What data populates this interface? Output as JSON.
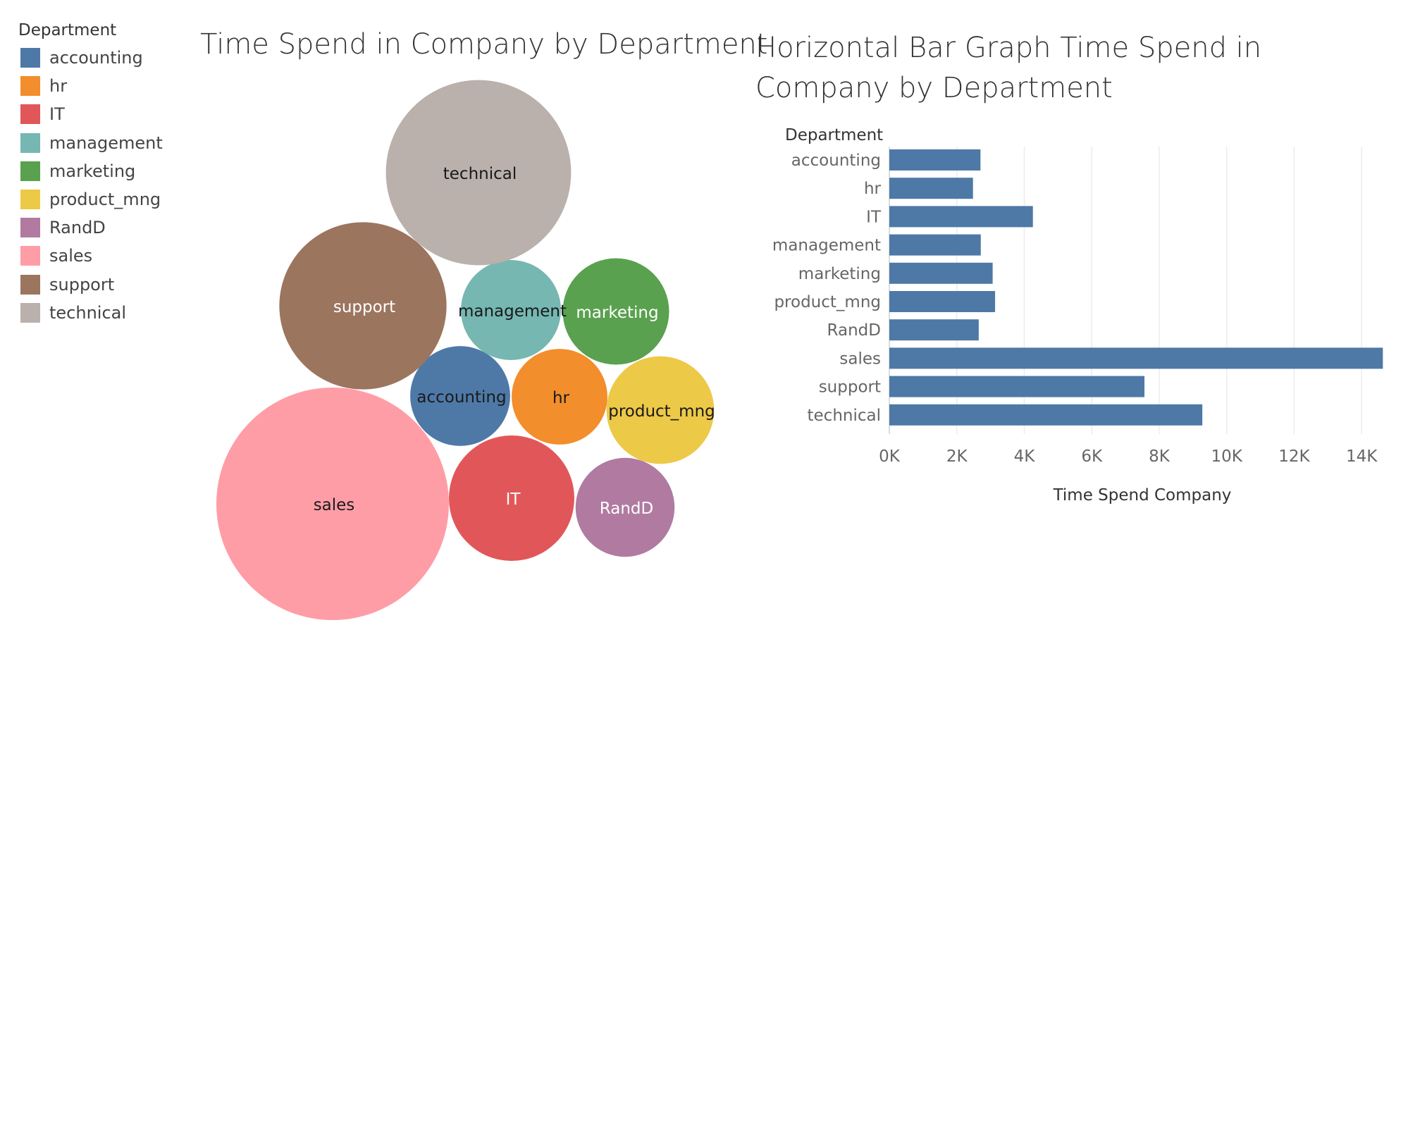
{
  "legend": {
    "title": "Department"
  },
  "titles": {
    "bubble": "Time Spend in Company by Department",
    "bar": "Horizontal Bar Graph Time Spend in Company by Department"
  },
  "chart_data": [
    {
      "type": "bubble",
      "title": "Time Spend in Company by Department",
      "categories": [
        "accounting",
        "hr",
        "IT",
        "management",
        "marketing",
        "product_mng",
        "RandD",
        "sales",
        "support",
        "technical"
      ],
      "values": [
        2702,
        2480,
        4256,
        2711,
        3063,
        3135,
        2650,
        14631,
        7563,
        9279
      ],
      "colors": {
        "accounting": "#4e79a7",
        "hr": "#f28e2b",
        "IT": "#e15759",
        "management": "#76b7b2",
        "marketing": "#59a14f",
        "product_mng": "#edc948",
        "RandD": "#b07aa1",
        "sales": "#ff9da7",
        "support": "#9c755f",
        "technical": "#bab0ac"
      },
      "label_colors": {
        "accounting": "#1a1a1a",
        "hr": "#1a1a1a",
        "IT": "#ffffff",
        "management": "#1a1a1a",
        "marketing": "#ffffff",
        "product_mng": "#1a1a1a",
        "RandD": "#ffffff",
        "sales": "#1a1a1a",
        "support": "#ffffff",
        "technical": "#1a1a1a"
      },
      "legend_position": "top-left"
    },
    {
      "type": "bar",
      "orientation": "horizontal",
      "title": "Horizontal Bar Graph Time Spend in Company by Department",
      "y_header": "Department",
      "xlabel": "Time Spend Company",
      "categories": [
        "accounting",
        "hr",
        "IT",
        "management",
        "marketing",
        "product_mng",
        "RandD",
        "sales",
        "support",
        "technical"
      ],
      "values": [
        2702,
        2480,
        4256,
        2711,
        3063,
        3135,
        2650,
        14631,
        7563,
        9279
      ],
      "xlim": [
        0,
        15000
      ],
      "xticks": [
        0,
        2000,
        4000,
        6000,
        8000,
        10000,
        12000,
        14000
      ],
      "xtick_labels": [
        "0K",
        "2K",
        "4K",
        "6K",
        "8K",
        "10K",
        "12K",
        "14K"
      ],
      "bar_color": "#4e79a7",
      "grid": true
    }
  ]
}
